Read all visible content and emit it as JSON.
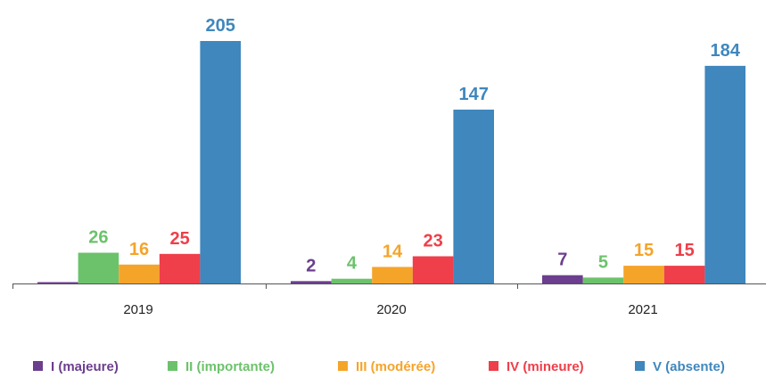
{
  "chart_data": {
    "type": "bar",
    "categories": [
      "2019",
      "2020",
      "2021"
    ],
    "series": [
      {
        "name": "I (majeure)",
        "color": "#6b3e8e",
        "values": [
          0,
          2,
          7
        ]
      },
      {
        "name": "II (importante)",
        "color": "#6cc26b",
        "values": [
          26,
          4,
          5
        ]
      },
      {
        "name": "III (modérée)",
        "color": "#f5a42a",
        "values": [
          16,
          14,
          15
        ]
      },
      {
        "name": "IV (mineure)",
        "color": "#ee3f4a",
        "values": [
          25,
          23,
          15
        ]
      },
      {
        "name": "V (absente)",
        "color": "#3f87bd",
        "values": [
          205,
          147,
          184
        ]
      }
    ],
    "value_labels_shown": [
      [
        false,
        true,
        true
      ],
      [
        true,
        true,
        true
      ],
      [
        true,
        true,
        true
      ],
      [
        true,
        true,
        true
      ],
      [
        true,
        true,
        true
      ]
    ],
    "ylim": [
      0,
      205
    ],
    "grid": false,
    "legend_position": "bottom"
  }
}
